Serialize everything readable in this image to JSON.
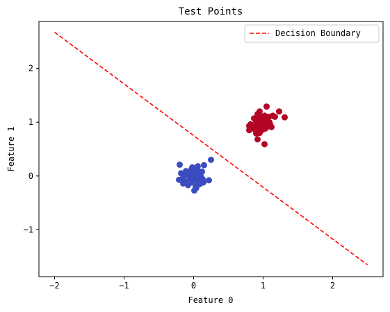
{
  "chart_data": {
    "type": "scatter",
    "title": "Test Points",
    "xlabel": "Feature 0",
    "ylabel": "Feature 1",
    "xlim": [
      -2.225,
      2.725
    ],
    "ylim": [
      -1.87,
      2.87
    ],
    "xticks": [
      -2,
      -1,
      0,
      1,
      2
    ],
    "xtick_labels": [
      "−2",
      "−1",
      "0",
      "1",
      "2"
    ],
    "yticks": [
      -1,
      0,
      1,
      2
    ],
    "ytick_labels": [
      "−1",
      "0",
      "1",
      "2"
    ],
    "grid": false,
    "legend": {
      "position": "top-right",
      "entries": [
        "Decision Boundary"
      ]
    },
    "series": [
      {
        "kind": "points",
        "color": "#3b4cc0",
        "points": [
          [
            -0.2,
            0.21
          ],
          [
            -0.18,
            0.05
          ],
          [
            -0.17,
            -0.06
          ],
          [
            -0.15,
            -0.14
          ],
          [
            -0.13,
            0.0
          ],
          [
            -0.12,
            -0.1
          ],
          [
            -0.1,
            0.06
          ],
          [
            -0.08,
            -0.17
          ],
          [
            -0.07,
            0.02
          ],
          [
            -0.05,
            -0.05
          ],
          [
            -0.04,
            0.1
          ],
          [
            -0.03,
            -0.12
          ],
          [
            -0.02,
            0.16
          ],
          [
            -0.01,
            0.0
          ],
          [
            0.0,
            -0.08
          ],
          [
            0.0,
            0.05
          ],
          [
            0.01,
            -0.27
          ],
          [
            0.02,
            0.12
          ],
          [
            0.03,
            -0.2
          ],
          [
            0.04,
            0.03
          ],
          [
            0.05,
            -0.1
          ],
          [
            0.06,
            0.18
          ],
          [
            0.07,
            -0.04
          ],
          [
            0.08,
            0.08
          ],
          [
            0.09,
            -0.15
          ],
          [
            0.1,
            0.0
          ],
          [
            0.12,
            0.08
          ],
          [
            0.13,
            -0.06
          ],
          [
            0.15,
            0.2
          ],
          [
            -0.21,
            -0.07
          ],
          [
            -0.16,
            0.04
          ],
          [
            0.04,
            -0.22
          ],
          [
            0.14,
            -0.12
          ],
          [
            0.22,
            -0.08
          ],
          [
            0.25,
            0.3
          ],
          [
            -0.06,
            0.0
          ],
          [
            0.02,
            -0.03
          ],
          [
            -0.11,
            0.09
          ],
          [
            0.08,
            -0.01
          ],
          [
            0.11,
            -0.03
          ]
        ]
      },
      {
        "kind": "points",
        "color": "#b40426",
        "points": [
          [
            0.8,
            0.85
          ],
          [
            0.8,
            0.93
          ],
          [
            0.82,
            0.96
          ],
          [
            0.85,
            0.92
          ],
          [
            0.87,
            1.07
          ],
          [
            0.88,
            0.87
          ],
          [
            0.9,
            1.01
          ],
          [
            0.91,
            0.95
          ],
          [
            0.92,
            1.15
          ],
          [
            0.92,
            0.68
          ],
          [
            0.93,
            0.9
          ],
          [
            0.94,
            1.04
          ],
          [
            0.95,
            1.2
          ],
          [
            0.95,
            0.8
          ],
          [
            0.96,
            1.0
          ],
          [
            0.97,
            0.92
          ],
          [
            0.98,
            1.1
          ],
          [
            0.99,
            0.86
          ],
          [
            1.0,
            1.02
          ],
          [
            1.01,
            0.95
          ],
          [
            1.02,
            1.12
          ],
          [
            1.02,
            0.59
          ],
          [
            1.03,
            0.88
          ],
          [
            1.04,
            0.98
          ],
          [
            1.05,
            1.29
          ],
          [
            1.06,
            1.05
          ],
          [
            1.07,
            0.92
          ],
          [
            1.08,
            1.1
          ],
          [
            1.09,
            1.0
          ],
          [
            1.1,
            0.96
          ],
          [
            1.12,
            0.91
          ],
          [
            1.14,
            1.12
          ],
          [
            1.17,
            1.1
          ],
          [
            1.23,
            1.2
          ],
          [
            1.31,
            1.09
          ],
          [
            0.9,
            0.79
          ],
          [
            1.0,
            0.9
          ],
          [
            0.95,
            1.1
          ]
        ]
      },
      {
        "kind": "line",
        "name": "Decision Boundary",
        "color": "#ff0000",
        "style": "dashed",
        "x": [
          -2.0,
          2.5
        ],
        "y": [
          2.67,
          -1.65
        ]
      }
    ]
  }
}
